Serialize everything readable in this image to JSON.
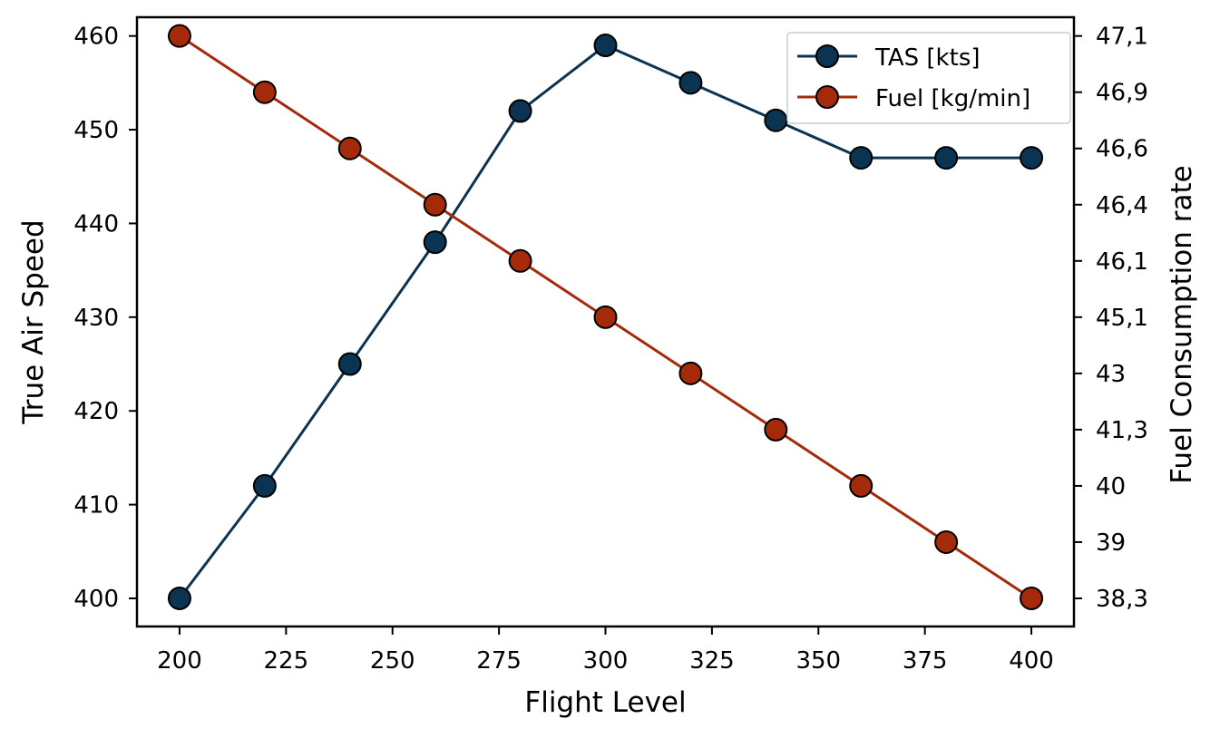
{
  "chart_data": {
    "type": "line",
    "title": "",
    "xlabel": "Flight Level",
    "ylabel": "True Air Speed",
    "y2label": "Fuel Consumption rate",
    "x": [
      200,
      220,
      240,
      260,
      280,
      300,
      320,
      340,
      360,
      380,
      400
    ],
    "xlim": [
      190,
      410
    ],
    "ylim": [
      397,
      462
    ],
    "xticks": [
      200,
      225,
      250,
      275,
      300,
      325,
      350,
      375,
      400
    ],
    "yticks": [
      400,
      410,
      420,
      430,
      440,
      450,
      460
    ],
    "y2_tick_labels": [
      "38,3",
      "39",
      "40",
      "41,3",
      "43",
      "45,1",
      "46,1",
      "46,4",
      "46,6",
      "46,9",
      "47,1"
    ],
    "grid": false,
    "legend_position": "top-right",
    "series": [
      {
        "name": "TAS [kts]",
        "axis": "left",
        "color": "#0b3453",
        "values": [
          400,
          412,
          425,
          438,
          452,
          459,
          455,
          451,
          447,
          447,
          447
        ]
      },
      {
        "name": "Fuel [kg/min]",
        "axis": "right",
        "color": "#a52a0a",
        "values": [
          "47,1",
          "46,9",
          "46,6",
          "46,4",
          "46,1",
          "45,1",
          "43",
          "41,3",
          "40",
          "39",
          "38,3"
        ]
      }
    ]
  }
}
